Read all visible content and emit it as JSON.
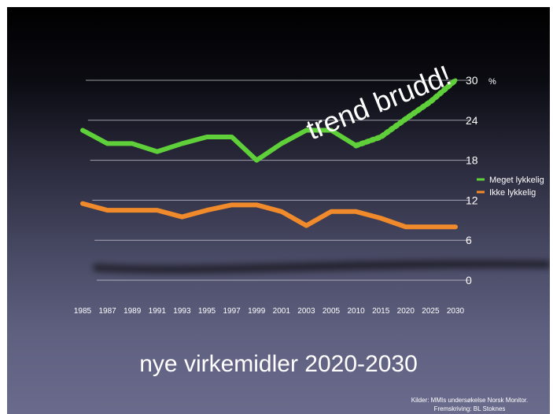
{
  "chart_data": {
    "type": "line",
    "title": "",
    "xlabel": "",
    "ylabel": "",
    "ylim": [
      0,
      30
    ],
    "y_unit": "%",
    "yticks": [
      0,
      6,
      12,
      18,
      24,
      30
    ],
    "categories": [
      "1985",
      "1987",
      "1989",
      "1991",
      "1993",
      "1995",
      "1997",
      "1999",
      "2001",
      "2003",
      "2005",
      "2010",
      "2015",
      "2020",
      "2025",
      "2030"
    ],
    "series": [
      {
        "name": "Meget lykkelig",
        "color": "#5fcf3a",
        "values": [
          22.5,
          20.5,
          20.5,
          19.3,
          20.5,
          21.5,
          21.5,
          18,
          20.5,
          22.5,
          22.5,
          20.2,
          21.5,
          24.2,
          26.8,
          30
        ],
        "projected_from_index": 11
      },
      {
        "name": "Ikke lykkelig",
        "color": "#f08a2a",
        "values": [
          11.5,
          10.5,
          10.5,
          10.5,
          9.5,
          10.5,
          11.3,
          11.3,
          10.3,
          8.2,
          10.3,
          10.3,
          9.3,
          8,
          8,
          8
        ]
      }
    ],
    "grid": true,
    "legend_position": "right",
    "annotation": "trend brudd!"
  },
  "subtitle": "nye virkemidler 2020-2030",
  "source_lines": [
    "Kilder: MMIs undersøkelse Norsk Monitor.",
    "Fremskriving: BL Stoknes"
  ]
}
